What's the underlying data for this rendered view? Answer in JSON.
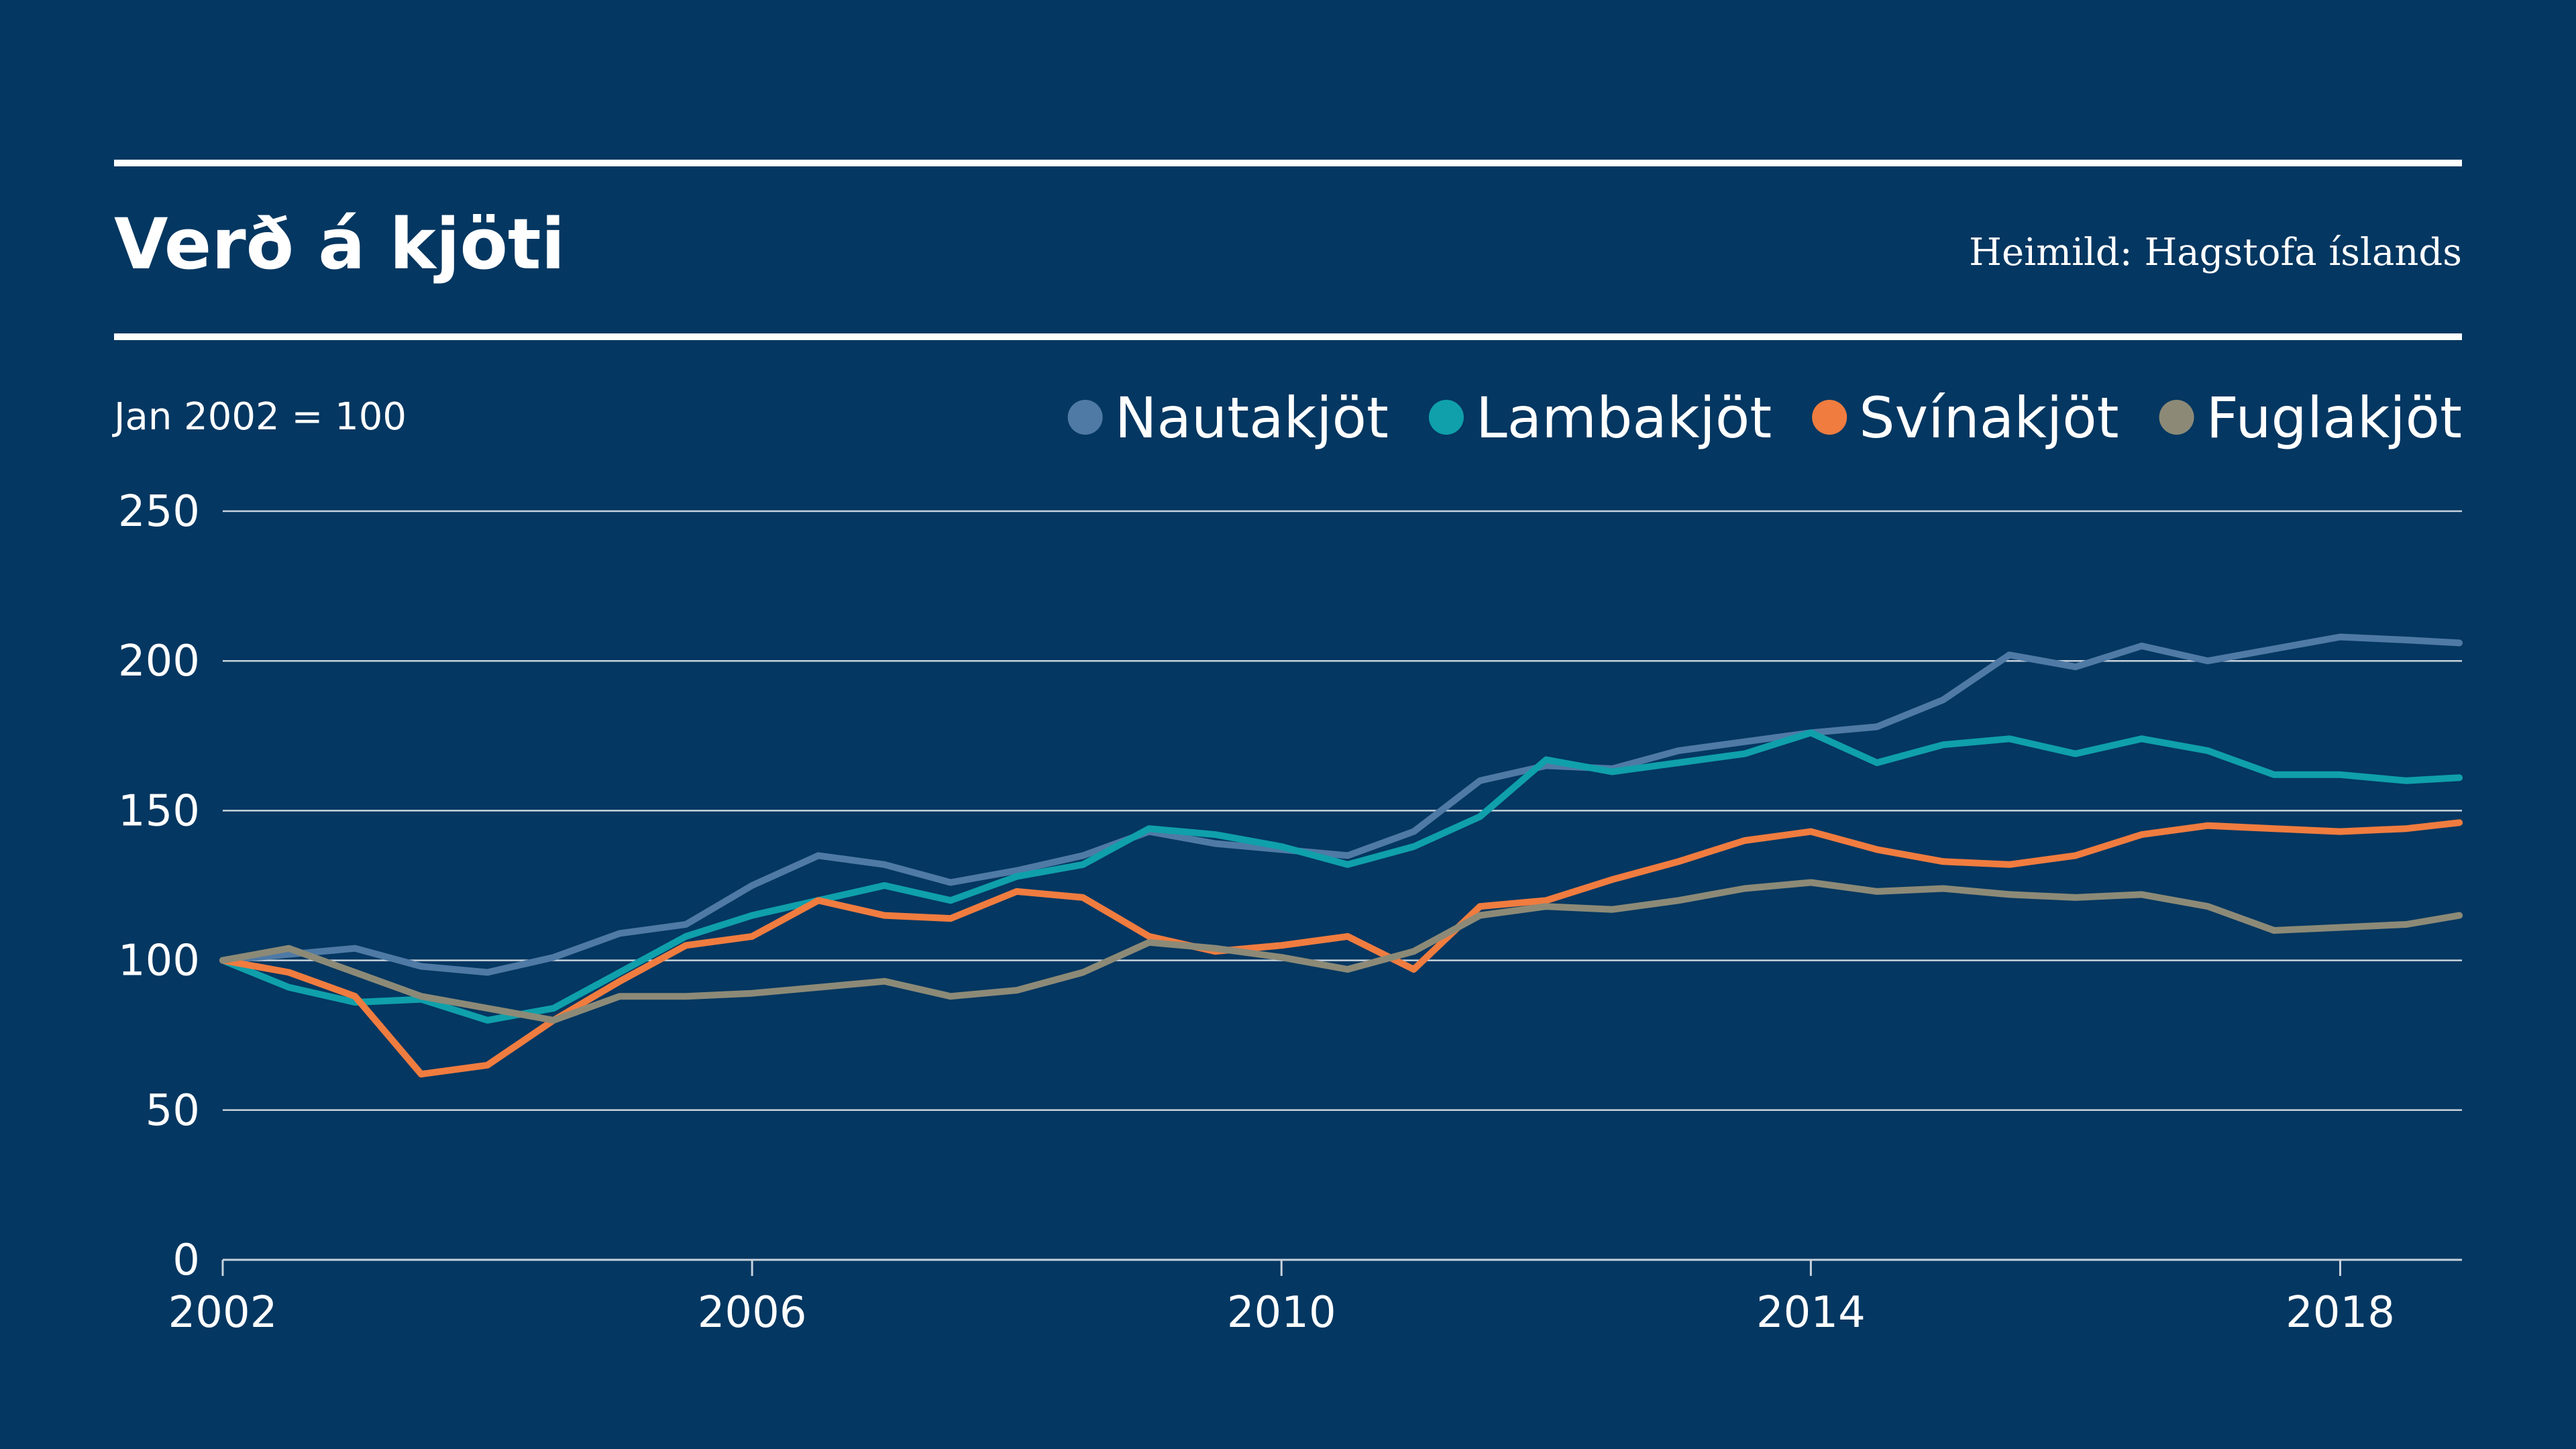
{
  "header": {
    "title": "Verð á kjöti",
    "source": "Heimild: Hagstofa íslands",
    "note": "Jan 2002 = 100"
  },
  "chart_data": {
    "type": "line",
    "title": "Verð á kjöti",
    "xlim": [
      2002,
      2018.92
    ],
    "ylim": [
      0,
      250
    ],
    "x_ticks": [
      2002,
      2006,
      2010,
      2014,
      2018
    ],
    "y_ticks": [
      0,
      50,
      100,
      150,
      200,
      250
    ],
    "grid": true,
    "legend_position": "top-right",
    "x": [
      2002.0,
      2002.5,
      2003.0,
      2003.5,
      2004.0,
      2004.5,
      2005.0,
      2005.5,
      2006.0,
      2006.5,
      2007.0,
      2007.5,
      2008.0,
      2008.5,
      2009.0,
      2009.5,
      2010.0,
      2010.5,
      2011.0,
      2011.5,
      2012.0,
      2012.5,
      2013.0,
      2013.5,
      2014.0,
      2014.5,
      2015.0,
      2015.5,
      2016.0,
      2016.5,
      2017.0,
      2017.5,
      2018.0,
      2018.5,
      2018.9
    ],
    "series": [
      {
        "name": "Nautakjöt",
        "color": "#4f7aa6",
        "values": [
          100,
          102,
          104,
          98,
          96,
          101,
          109,
          112,
          125,
          135,
          132,
          126,
          130,
          135,
          143,
          139,
          137,
          135,
          143,
          160,
          165,
          164,
          170,
          173,
          176,
          178,
          187,
          202,
          198,
          205,
          200,
          204,
          208,
          207,
          206
        ]
      },
      {
        "name": "Lambakjöt",
        "color": "#0fa0ab",
        "values": [
          100,
          91,
          86,
          87,
          80,
          84,
          96,
          108,
          115,
          120,
          125,
          120,
          128,
          132,
          144,
          142,
          138,
          132,
          138,
          148,
          167,
          163,
          166,
          169,
          176,
          166,
          172,
          174,
          169,
          174,
          170,
          162,
          162,
          160,
          161
        ]
      },
      {
        "name": "Svínakjöt",
        "color": "#f07c3f",
        "values": [
          100,
          96,
          88,
          62,
          65,
          80,
          93,
          105,
          108,
          120,
          115,
          114,
          123,
          121,
          108,
          103,
          105,
          108,
          97,
          118,
          120,
          127,
          133,
          140,
          143,
          137,
          133,
          132,
          135,
          142,
          145,
          144,
          143,
          144,
          146
        ]
      },
      {
        "name": "Fuglakjöt",
        "color": "#8c8a77",
        "values": [
          100,
          104,
          96,
          88,
          84,
          80,
          88,
          88,
          89,
          91,
          93,
          88,
          90,
          96,
          106,
          104,
          101,
          97,
          103,
          115,
          118,
          117,
          120,
          124,
          126,
          123,
          124,
          122,
          121,
          122,
          118,
          110,
          111,
          112,
          115
        ]
      }
    ]
  }
}
